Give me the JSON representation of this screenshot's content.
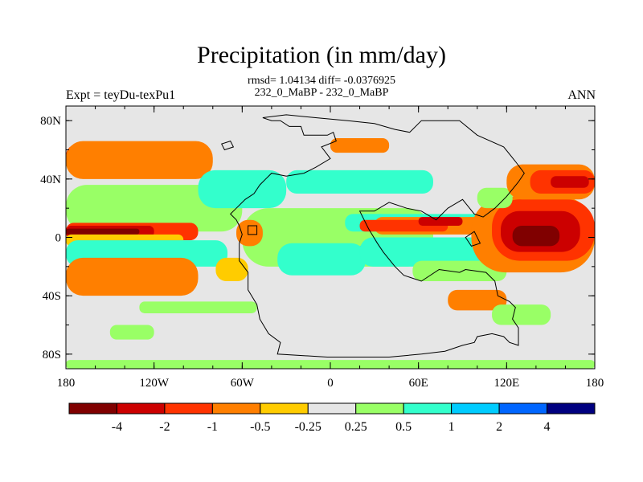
{
  "chart_data": {
    "type": "heatmap",
    "title": "Precipitation (in mm/day)",
    "stats_line": "rmsd= 1.04134 diff= -0.0376925",
    "subtitle": "232_0_MaBP - 232_0_MaBP",
    "left_label": "Expt = teyDu-texPu1",
    "right_label": "ANN",
    "x_axis": {
      "range": [
        -180,
        180
      ],
      "ticks": [
        {
          "value": -180,
          "label": "180"
        },
        {
          "value": -120,
          "label": "120W"
        },
        {
          "value": -60,
          "label": "60W"
        },
        {
          "value": 0,
          "label": "0"
        },
        {
          "value": 60,
          "label": "60E"
        },
        {
          "value": 120,
          "label": "120E"
        },
        {
          "value": 180,
          "label": "180"
        }
      ]
    },
    "y_axis": {
      "range": [
        -90,
        90
      ],
      "ticks": [
        {
          "value": 80,
          "label": "80N"
        },
        {
          "value": 40,
          "label": "40N"
        },
        {
          "value": 0,
          "label": "0"
        },
        {
          "value": -40,
          "label": "40S"
        },
        {
          "value": -80,
          "label": "80S"
        }
      ]
    },
    "colorbar": {
      "colors": [
        "#800000",
        "#cc0000",
        "#ff3300",
        "#ff7f00",
        "#ffcc00",
        "#e6e6e6",
        "#99ff66",
        "#33ffcc",
        "#00ccff",
        "#0066ff",
        "#000080"
      ],
      "labels": [
        "-4",
        "-2",
        "-1",
        "-0.5",
        "-0.25",
        "0.25",
        "0.5",
        "1",
        "2",
        "4"
      ]
    },
    "regions": [
      {
        "lon": [
          -180,
          -108
        ],
        "lat": [
          16,
          24
        ],
        "level": 9
      },
      {
        "lon": [
          -176,
          -116
        ],
        "lat": [
          12,
          30
        ],
        "level": 8
      },
      {
        "lon": [
          -180,
          -60
        ],
        "lat": [
          4,
          36
        ],
        "level": 6
      },
      {
        "lon": [
          -180,
          -90
        ],
        "lat": [
          -2,
          10
        ],
        "level": 2
      },
      {
        "lon": [
          -180,
          -120
        ],
        "lat": [
          0,
          8
        ],
        "level": 1
      },
      {
        "lon": [
          -180,
          -130
        ],
        "lat": [
          2,
          6
        ],
        "level": 0
      },
      {
        "lon": [
          -180,
          -100
        ],
        "lat": [
          -6,
          2
        ],
        "level": 4
      },
      {
        "lon": [
          -166,
          -110
        ],
        "lat": [
          -16,
          -4
        ],
        "level": 8
      },
      {
        "lon": [
          -180,
          -70
        ],
        "lat": [
          -20,
          -2
        ],
        "level": 7
      },
      {
        "lon": [
          -180,
          -130
        ],
        "lat": [
          -34,
          -18
        ],
        "level": 2
      },
      {
        "lon": [
          -180,
          -90
        ],
        "lat": [
          -40,
          -14
        ],
        "level": 3
      },
      {
        "lon": [
          -180,
          -110
        ],
        "lat": [
          46,
          64
        ],
        "level": 2
      },
      {
        "lon": [
          -180,
          -80
        ],
        "lat": [
          40,
          66
        ],
        "level": 3
      },
      {
        "lon": [
          -90,
          -30
        ],
        "lat": [
          20,
          46
        ],
        "level": 7
      },
      {
        "lon": [
          -30,
          70
        ],
        "lat": [
          30,
          46
        ],
        "level": 7
      },
      {
        "lon": [
          -60,
          70
        ],
        "lat": [
          -20,
          20
        ],
        "level": 6
      },
      {
        "lon": [
          -22,
          38
        ],
        "lat": [
          -16,
          -6
        ],
        "level": 8
      },
      {
        "lon": [
          -36,
          24
        ],
        "lat": [
          -26,
          -4
        ],
        "level": 7
      },
      {
        "lon": [
          -60,
          -50
        ],
        "lat": [
          -2,
          8
        ],
        "level": 1
      },
      {
        "lon": [
          -64,
          -46
        ],
        "lat": [
          -6,
          12
        ],
        "level": 3
      },
      {
        "lon": [
          -78,
          -56
        ],
        "lat": [
          -30,
          -14
        ],
        "level": 4
      },
      {
        "lon": [
          10,
          40
        ],
        "lat": [
          4,
          16
        ],
        "level": 7
      },
      {
        "lon": [
          14,
          112
        ],
        "lat": [
          8,
          16
        ],
        "level": 7
      },
      {
        "lon": [
          30,
          110
        ],
        "lat": [
          2,
          14
        ],
        "level": 3
      },
      {
        "lon": [
          20,
          80
        ],
        "lat": [
          4,
          12
        ],
        "level": 2
      },
      {
        "lon": [
          60,
          90
        ],
        "lat": [
          8,
          14
        ],
        "level": 1
      },
      {
        "lon": [
          40,
          140
        ],
        "lat": [
          -14,
          -2
        ],
        "level": 8
      },
      {
        "lon": [
          60,
          100
        ],
        "lat": [
          -12,
          -4
        ],
        "level": 9
      },
      {
        "lon": [
          80,
          92
        ],
        "lat": [
          -10,
          -6
        ],
        "level": 10
      },
      {
        "lon": [
          20,
          150
        ],
        "lat": [
          -20,
          0
        ],
        "level": 7
      },
      {
        "lon": [
          56,
          120
        ],
        "lat": [
          -30,
          -16
        ],
        "level": 6
      },
      {
        "lon": [
          96,
          180
        ],
        "lat": [
          -24,
          28
        ],
        "level": 3
      },
      {
        "lon": [
          110,
          180
        ],
        "lat": [
          -16,
          26
        ],
        "level": 2
      },
      {
        "lon": [
          116,
          170
        ],
        "lat": [
          -10,
          18
        ],
        "level": 1
      },
      {
        "lon": [
          124,
          156
        ],
        "lat": [
          -6,
          8
        ],
        "level": 0
      },
      {
        "lon": [
          100,
          124
        ],
        "lat": [
          20,
          34
        ],
        "level": 6
      },
      {
        "lon": [
          120,
          180
        ],
        "lat": [
          26,
          50
        ],
        "level": 3
      },
      {
        "lon": [
          136,
          180
        ],
        "lat": [
          30,
          46
        ],
        "level": 2
      },
      {
        "lon": [
          150,
          176
        ],
        "lat": [
          34,
          42
        ],
        "level": 1
      },
      {
        "lon": [
          0,
          40
        ],
        "lat": [
          58,
          68
        ],
        "level": 3
      },
      {
        "lon": [
          80,
          120
        ],
        "lat": [
          -50,
          -36
        ],
        "level": 3
      },
      {
        "lon": [
          110,
          150
        ],
        "lat": [
          -60,
          -46
        ],
        "level": 6
      },
      {
        "lon": [
          -180,
          180
        ],
        "lat": [
          -90,
          -84
        ],
        "level": 6
      },
      {
        "lon": [
          -150,
          -120
        ],
        "lat": [
          -70,
          -60
        ],
        "level": 6
      },
      {
        "lon": [
          -130,
          -50
        ],
        "lat": [
          -52,
          -44
        ],
        "level": 6
      }
    ],
    "land_outline": [
      [
        -46,
        82
      ],
      [
        -40,
        80
      ],
      [
        -34,
        80
      ],
      [
        -28,
        76
      ],
      [
        -20,
        76
      ],
      [
        -18,
        70
      ],
      [
        -2,
        70
      ],
      [
        2,
        72
      ],
      [
        4,
        66
      ],
      [
        -6,
        62
      ],
      [
        0,
        54
      ],
      [
        -10,
        48
      ],
      [
        -18,
        44
      ],
      [
        -30,
        42
      ],
      [
        -40,
        44
      ],
      [
        -44,
        40
      ],
      [
        -48,
        36
      ],
      [
        -52,
        30
      ],
      [
        -58,
        26
      ],
      [
        -64,
        20
      ],
      [
        -68,
        16
      ],
      [
        -64,
        12
      ],
      [
        -62,
        8
      ],
      [
        -60,
        2
      ],
      [
        -62,
        -4
      ],
      [
        -62,
        -16
      ],
      [
        -56,
        -24
      ],
      [
        -56,
        -36
      ],
      [
        -50,
        -46
      ],
      [
        -48,
        -56
      ],
      [
        -42,
        -66
      ],
      [
        -34,
        -72
      ],
      [
        -36,
        -80
      ],
      [
        -2,
        -82
      ],
      [
        40,
        -82
      ],
      [
        62,
        -80
      ],
      [
        78,
        -78
      ],
      [
        90,
        -74
      ],
      [
        98,
        -72
      ],
      [
        100,
        -68
      ],
      [
        110,
        -66
      ],
      [
        118,
        -68
      ],
      [
        122,
        -72
      ],
      [
        128,
        -74
      ],
      [
        128,
        -62
      ],
      [
        124,
        -56
      ],
      [
        126,
        -48
      ],
      [
        122,
        -44
      ],
      [
        114,
        -40
      ],
      [
        112,
        -30
      ],
      [
        106,
        -24
      ],
      [
        92,
        -22
      ],
      [
        88,
        -24
      ],
      [
        74,
        -22
      ],
      [
        62,
        -30
      ],
      [
        50,
        -26
      ],
      [
        44,
        -20
      ],
      [
        36,
        -10
      ],
      [
        32,
        -4
      ],
      [
        26,
        6
      ],
      [
        20,
        18
      ],
      [
        30,
        18
      ],
      [
        40,
        24
      ],
      [
        52,
        20
      ],
      [
        62,
        18
      ],
      [
        72,
        12
      ],
      [
        80,
        20
      ],
      [
        90,
        26
      ],
      [
        98,
        16
      ],
      [
        104,
        14
      ],
      [
        112,
        20
      ],
      [
        120,
        28
      ],
      [
        128,
        38
      ],
      [
        132,
        44
      ],
      [
        126,
        52
      ],
      [
        118,
        62
      ],
      [
        100,
        70
      ],
      [
        88,
        80
      ],
      [
        62,
        80
      ],
      [
        54,
        72
      ],
      [
        44,
        74
      ],
      [
        30,
        78
      ],
      [
        12,
        80
      ],
      [
        -10,
        82
      ],
      [
        -30,
        84
      ]
    ],
    "islands": [
      [
        [
          -74,
          64
        ],
        [
          -72,
          60
        ],
        [
          -66,
          62
        ],
        [
          -68,
          66
        ]
      ],
      [
        [
          -56,
          8
        ],
        [
          -50,
          8
        ],
        [
          -50,
          2
        ],
        [
          -56,
          2
        ]
      ],
      [
        [
          92,
          0
        ],
        [
          98,
          4
        ],
        [
          102,
          -4
        ],
        [
          96,
          -6
        ]
      ]
    ]
  }
}
